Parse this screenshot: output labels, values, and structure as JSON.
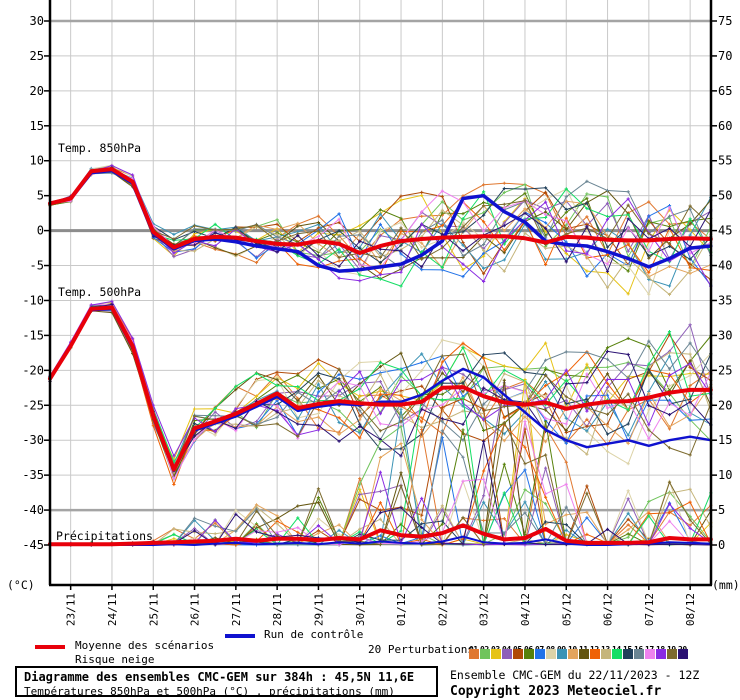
{
  "chart_data": {
    "type": "line",
    "title": "Diagramme des ensembles CMC-GEM sur 384h : 45,5N 11,6E",
    "subtitle": "Températures 850hPa et 500hPa (°C) , précipitations (mm)",
    "run": "Ensemble CMC-GEM du 22/11/2023 - 12Z",
    "x_step_days": 0.5,
    "x_start": "22/11 12Z",
    "day_labels": [
      "23/11",
      "24/11",
      "25/11",
      "26/11",
      "27/11",
      "28/11",
      "29/11",
      "30/11",
      "01/12",
      "02/12",
      "03/12",
      "04/12",
      "05/12",
      "06/12",
      "07/12",
      "08/12"
    ],
    "left_axis": {
      "unit": "(°C)",
      "ticks": [
        30,
        25,
        20,
        15,
        10,
        5,
        0,
        -5,
        -10,
        -15,
        -20,
        -25,
        -30,
        -35,
        -40,
        -45
      ]
    },
    "right_axis": {
      "unit": "(mm)",
      "ticks": [
        75,
        70,
        65,
        60,
        55,
        50,
        45,
        40,
        35,
        30,
        25,
        20,
        15,
        10,
        5,
        0
      ]
    },
    "panel_labels": {
      "t850": "Temp. 850hPa",
      "t500": "Temp. 500hPa",
      "precip": "Précipitations"
    },
    "grid": {
      "thick_values": [
        30,
        -40
      ],
      "zero_value": 0
    },
    "t850": {
      "mean": [
        3.9,
        4.6,
        8.5,
        8.8,
        7.0,
        -0.2,
        -2.4,
        -1.2,
        -0.9,
        -1.0,
        -1.5,
        -1.9,
        -2.0,
        -1.5,
        -1.9,
        -3.2,
        -2.2,
        -1.5,
        -1.2,
        -1.0,
        -0.9,
        -0.8,
        -0.8,
        -1.1,
        -1.7,
        -0.9,
        -1.0,
        -1.3,
        -1.4,
        -1.4,
        -1.2,
        -1.1,
        -1.2
      ],
      "control": [
        3.9,
        4.6,
        8.3,
        8.6,
        6.8,
        -0.4,
        -2.6,
        -1.4,
        -1.2,
        -1.6,
        -2.2,
        -2.6,
        -3.0,
        -5.0,
        -5.8,
        -5.6,
        -5.2,
        -4.8,
        -3.5,
        -1.5,
        4.6,
        5.0,
        2.7,
        1.2,
        -1.5,
        -2.0,
        -2.2,
        -3.0,
        -4.0,
        -5.2,
        -4.0,
        -2.5,
        -2.2
      ],
      "spread": [
        0.4,
        0.5,
        0.6,
        0.7,
        0.9,
        1.2,
        1.6,
        2.0,
        2.3,
        2.6,
        3.0,
        3.4,
        3.8,
        4.2,
        4.6,
        5.0,
        5.3,
        5.6,
        5.8,
        6.0,
        6.2,
        6.4,
        6.6,
        6.7,
        6.8,
        6.9,
        7.0,
        7.0,
        7.1,
        7.2,
        7.3,
        7.4,
        7.5
      ]
    },
    "t500": {
      "mean": [
        -21.2,
        -16.5,
        -11.2,
        -11.0,
        -16.5,
        -26.5,
        -34.2,
        -28.3,
        -27.3,
        -26.2,
        -24.8,
        -23.3,
        -25.4,
        -24.8,
        -24.4,
        -24.7,
        -24.9,
        -24.9,
        -24.5,
        -22.5,
        -22.4,
        -23.7,
        -24.6,
        -24.9,
        -24.6,
        -25.5,
        -24.9,
        -24.5,
        -24.4,
        -23.9,
        -23.2,
        -22.8,
        -22.8
      ],
      "control": [
        -21.2,
        -16.5,
        -11.4,
        -11.2,
        -16.8,
        -26.8,
        -34.4,
        -28.6,
        -27.6,
        -26.6,
        -25.2,
        -23.8,
        -25.8,
        -25.2,
        -24.8,
        -25.0,
        -24.5,
        -24.5,
        -23.5,
        -21.5,
        -19.8,
        -21.0,
        -23.5,
        -26.0,
        -28.5,
        -30.0,
        -31.0,
        -30.5,
        -30.0,
        -30.8,
        -30.0,
        -29.5,
        -30.0
      ],
      "spread": [
        0.4,
        0.5,
        0.6,
        0.8,
        1.0,
        1.4,
        2.0,
        2.6,
        3.2,
        3.8,
        4.4,
        4.8,
        5.2,
        5.5,
        5.8,
        6.0,
        6.2,
        6.4,
        6.6,
        6.8,
        7.0,
        7.1,
        7.2,
        7.3,
        7.4,
        7.5,
        7.6,
        7.7,
        7.8,
        7.9,
        8.0,
        8.1,
        8.2
      ]
    },
    "precip": {
      "mean": [
        0.1,
        0.1,
        0.1,
        0.1,
        0.2,
        0.3,
        0.4,
        0.5,
        0.6,
        0.9,
        0.6,
        0.9,
        0.9,
        0.7,
        1.0,
        0.8,
        2.1,
        1.4,
        1.2,
        1.7,
        2.8,
        1.6,
        0.8,
        1.0,
        2.3,
        0.6,
        0.3,
        0.3,
        0.3,
        0.4,
        1.0,
        0.8,
        0.8
      ],
      "control": [
        0,
        0,
        0,
        0,
        0,
        0,
        0.1,
        0,
        0.2,
        0.3,
        0.1,
        0.2,
        0.3,
        0.1,
        0.4,
        0.2,
        0.5,
        0.3,
        0.2,
        0.5,
        1.2,
        0.4,
        0.2,
        0.3,
        0.8,
        0.2,
        0,
        0,
        0.1,
        0.2,
        0.4,
        0.3,
        0.2
      ],
      "amp": [
        0.3,
        0.3,
        0.3,
        0.5,
        1,
        2,
        3,
        4,
        4,
        5,
        6,
        6,
        7,
        9,
        10,
        12,
        16,
        20,
        22,
        24,
        22,
        20,
        25,
        24,
        18,
        12,
        10,
        9,
        8,
        9,
        10,
        9,
        8
      ],
      "prob": [
        0.1,
        0.1,
        0.1,
        0.2,
        0.3,
        0.35,
        0.4,
        0.4,
        0.45,
        0.5,
        0.5,
        0.5,
        0.5,
        0.55,
        0.55,
        0.6,
        0.6,
        0.65,
        0.65,
        0.6,
        0.6,
        0.55,
        0.6,
        0.6,
        0.5,
        0.45,
        0.4,
        0.4,
        0.4,
        0.45,
        0.5,
        0.45,
        0.4
      ]
    },
    "members": {
      "count": 20,
      "numbers": [
        "01",
        "02",
        "03",
        "04",
        "05",
        "06",
        "07",
        "08",
        "09",
        "10",
        "11",
        "12",
        "13",
        "14",
        "15",
        "16",
        "17",
        "18",
        "19",
        "20"
      ],
      "colors": [
        "#e07830",
        "#70c45c",
        "#e6c317",
        "#8e5fb8",
        "#b04a07",
        "#57810b",
        "#2273e8",
        "#dcd3a8",
        "#3b93b5",
        "#e3a45c",
        "#63550e",
        "#ef6105",
        "#c5b57b",
        "#14de64",
        "#21405b",
        "#6a8593",
        "#ee82ee",
        "#8a2be2",
        "#7c6a2d",
        "#2a1173"
      ]
    },
    "colors": {
      "mean": "#e8000a",
      "control": "#0f11cf",
      "grid": "#c9c9c9",
      "grid_thick": "#a4a4a4",
      "grid_zero": "#8c8c8c",
      "axis": "#000000"
    }
  },
  "legend": {
    "mean_label": "Moyenne des scénarios",
    "snow_label": "Risque neige",
    "control_label": "Run de contrôle",
    "perturbations_label": "20 Perturbations"
  },
  "footer": {
    "title": "Diagramme des ensembles CMC-GEM sur 384h : 45,5N 11,6E",
    "subtitle": "Températures 850hPa et 500hPa (°C) , précipitations (mm)",
    "run_info": "Ensemble CMC-GEM du 22/11/2023 - 12Z",
    "copyright": "Copyright 2023 Meteociel.fr"
  }
}
